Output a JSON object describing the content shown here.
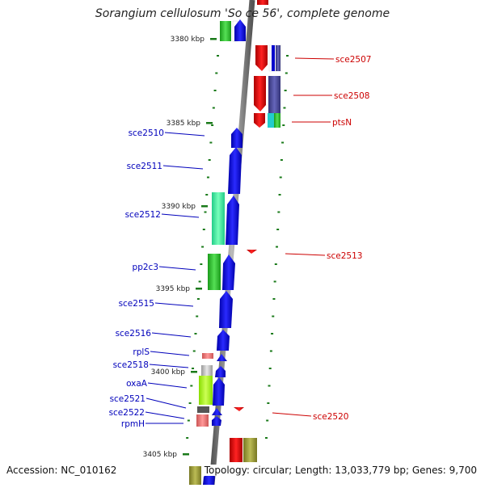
{
  "title": "Sorangium cellulosum 'So ce 56', complete genome",
  "footer": {
    "accession": "Accession: NC_010162",
    "stats": "Topology: circular; Length: 13,033,779 bp; Genes: 9,700"
  },
  "scale_labels": [
    "3380 kbp",
    "3385 kbp",
    "3390 kbp",
    "3395 kbp",
    "3400 kbp",
    "3405 kbp"
  ],
  "genes_left": [
    "sce2510",
    "sce2511",
    "sce2512",
    "pp2c3",
    "sce2515",
    "sce2516",
    "rplS",
    "sce2518",
    "oxaA",
    "sce2521",
    "sce2522",
    "rpmH"
  ],
  "genes_right": [
    "sce2507",
    "sce2508",
    "ptsN",
    "sce2513",
    "sce2520"
  ],
  "colors": {
    "forward_label": "#0000bb",
    "reverse_label": "#cc0000",
    "backbone": "#888888",
    "scale_tick": "#1a7a1a",
    "forward_cds": "#0000ee",
    "reverse_cds": "#ee0000"
  }
}
